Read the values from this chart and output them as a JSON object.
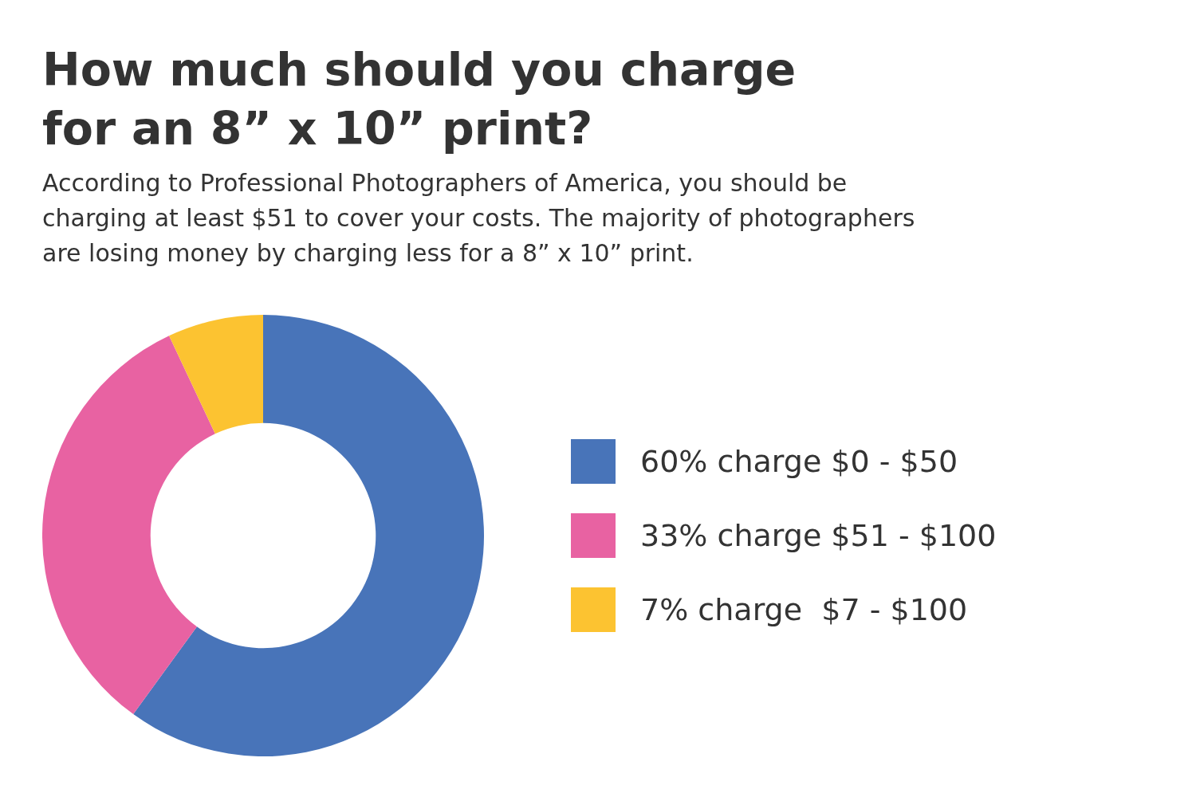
{
  "chart_data": {
    "type": "donut",
    "title": "How much should you charge for an 8” x 10” print?",
    "subtitle": "According to Professional Photographers of America, you should be charging at least $51 to cover your costs. The majority of photographers are losing money by charging less for a 8” x 10” print.",
    "categories": [
      "60% charge $0 - $50",
      "33% charge $51 - $100",
      "7% charge  $7 - $100"
    ],
    "values": [
      60,
      33,
      7
    ],
    "colors": [
      "#4874b9",
      "#e862a2",
      "#fcc331"
    ],
    "legend": "right"
  }
}
